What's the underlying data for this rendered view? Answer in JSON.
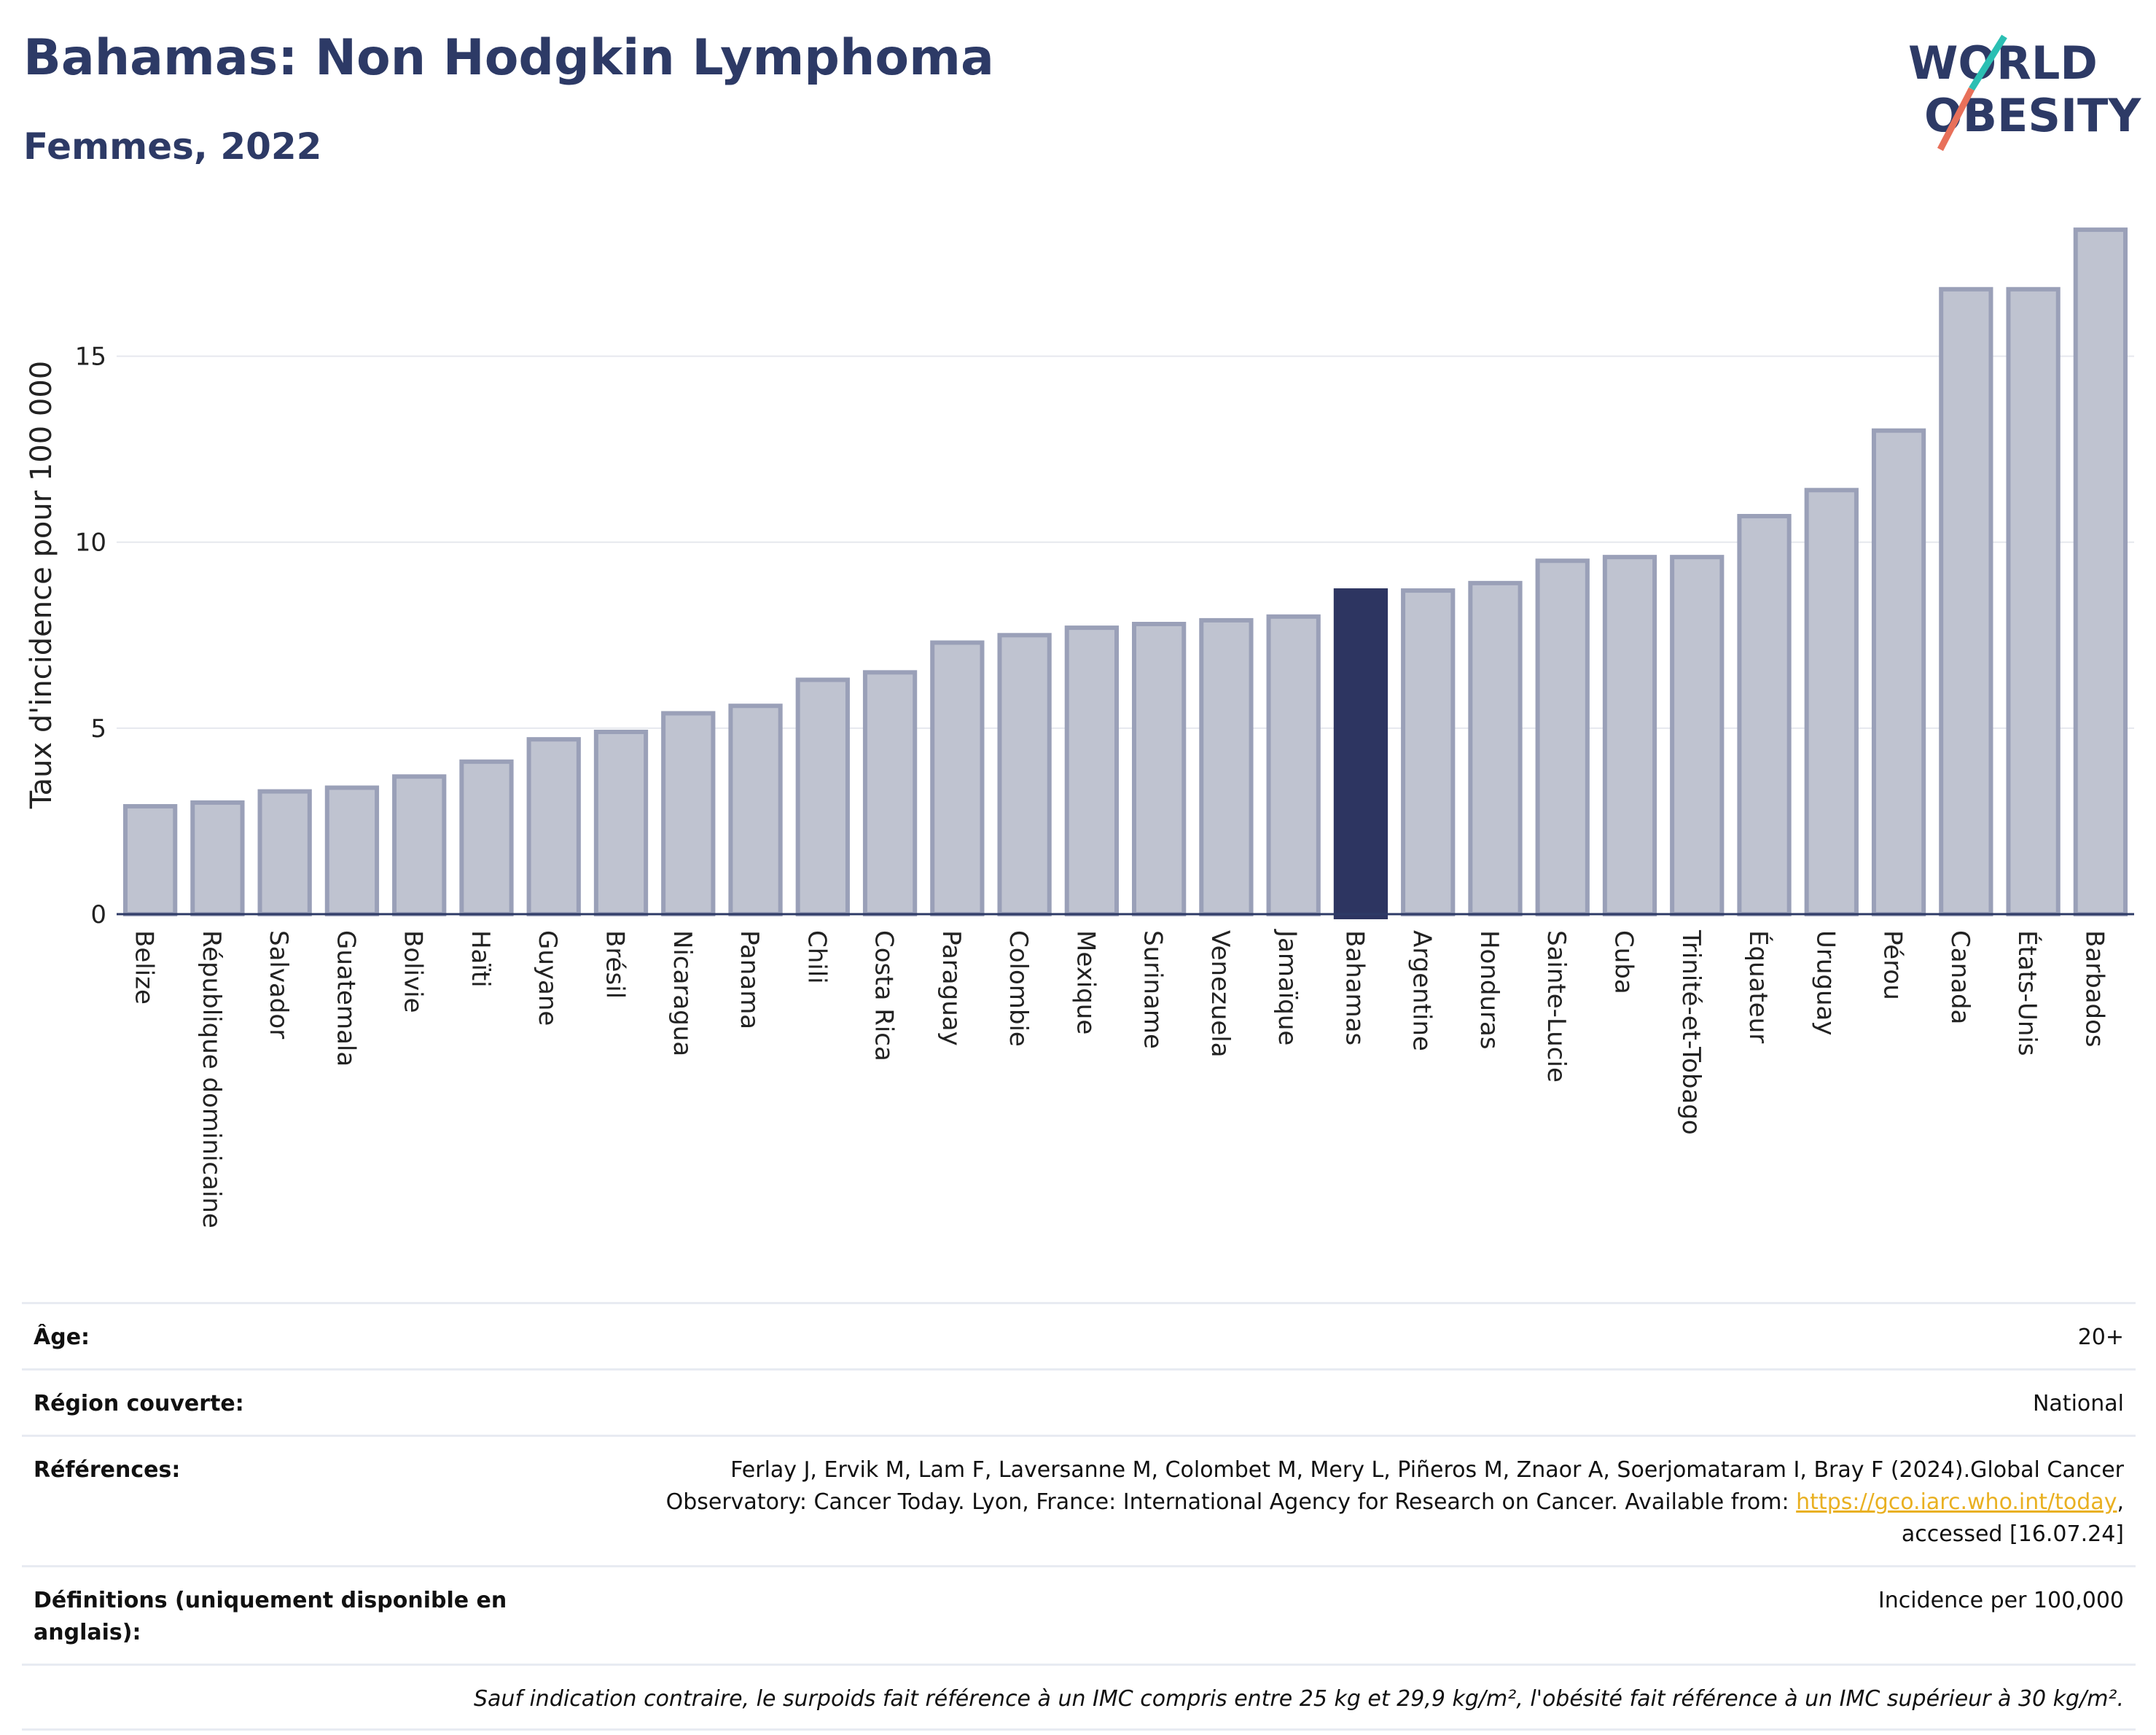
{
  "header": {
    "title": "Bahamas: Non Hodgkin Lymphoma",
    "subtitle": "Femmes, 2022",
    "logo_line1": "WORLD",
    "logo_line2": "OBESITY"
  },
  "colors": {
    "bar_default": "#bfc3d0",
    "bar_default_border": "#9aa0b8",
    "bar_highlight": "#2d3561",
    "title": "#2d3a66",
    "logo_teal": "#2bbfb3",
    "logo_coral": "#e8705a",
    "link": "#e9b021"
  },
  "chart_data": {
    "type": "bar",
    "ylabel": "Taux d'incidence pour 100 000",
    "xlabel": "",
    "ylim": [
      0,
      18.5
    ],
    "yticks": [
      0,
      5,
      10,
      15
    ],
    "grid": true,
    "highlight": "Bahamas",
    "categories": [
      "Belize",
      "République dominicaine",
      "Salvador",
      "Guatemala",
      "Bolivie",
      "Haïti",
      "Guyane",
      "Brésil",
      "Nicaragua",
      "Panama",
      "Chili",
      "Costa Rica",
      "Paraguay",
      "Colombie",
      "Mexique",
      "Suriname",
      "Venezuela",
      "Jamaïque",
      "Bahamas",
      "Argentine",
      "Honduras",
      "Sainte-Lucie",
      "Cuba",
      "Trinité-et-Tobago",
      "Équateur",
      "Uruguay",
      "Pérou",
      "Canada",
      "États-Unis",
      "Barbados"
    ],
    "values": [
      2.9,
      3.0,
      3.3,
      3.4,
      3.7,
      4.1,
      4.7,
      4.9,
      5.4,
      5.6,
      6.3,
      6.5,
      7.3,
      7.5,
      7.7,
      7.8,
      7.9,
      8.0,
      8.7,
      8.7,
      8.9,
      9.5,
      9.6,
      9.6,
      10.7,
      11.4,
      13.0,
      16.8,
      16.8,
      18.4
    ]
  },
  "meta": {
    "age_label": "Âge:",
    "age_value": "20+",
    "region_label": "Région couverte:",
    "region_value": "National",
    "refs_label": "Références:",
    "refs_text1": "Ferlay J, Ervik M, Lam F, Laversanne M, Colombet M, Mery L, Piñeros M, Znaor A, Soerjomataram I, Bray F (2024).Global Cancer",
    "refs_text2": "Observatory: Cancer Today. Lyon, France: International Agency for Research on Cancer. Available from: ",
    "refs_link": "https://gco.iarc.who.int/today",
    "refs_text3": ",",
    "refs_text4": "accessed [16.07.24]",
    "defs_label": "Définitions (uniquement disponible en anglais):",
    "defs_value": "Incidence per 100,000",
    "footnote": "Sauf indication contraire, le surpoids fait référence à un IMC compris entre 25 kg et 29,9 kg/m², l'obésité fait référence à un IMC supérieur à 30 kg/m²."
  }
}
